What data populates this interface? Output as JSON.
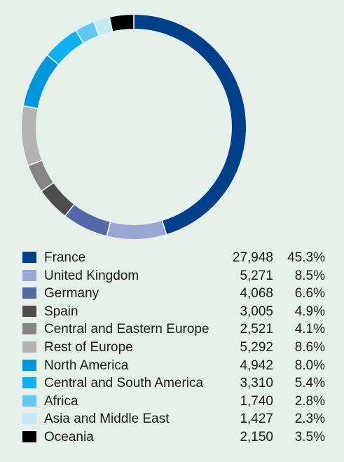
{
  "chart_data": {
    "type": "pie",
    "donut": true,
    "legend_position": "bottom",
    "slices": [
      {
        "label": "France",
        "value": 27948,
        "percent": "45.3%",
        "value_text": "27,948",
        "color": "#003f8a"
      },
      {
        "label": "United Kingdom",
        "value": 5271,
        "percent": "8.5%",
        "value_text": "5,271",
        "color": "#9aa6d4"
      },
      {
        "label": "Germany",
        "value": 4068,
        "percent": "6.6%",
        "value_text": "4,068",
        "color": "#5468a8"
      },
      {
        "label": "Spain",
        "value": 3005,
        "percent": "4.9%",
        "value_text": "3,005",
        "color": "#4d4d4d"
      },
      {
        "label": "Central and Eastern Europe",
        "value": 2521,
        "percent": "4.1%",
        "value_text": "2,521",
        "color": "#858585"
      },
      {
        "label": "Rest of Europe",
        "value": 5292,
        "percent": "8.6%",
        "value_text": "5,292",
        "color": "#b3b3b3"
      },
      {
        "label": "North America",
        "value": 4942,
        "percent": "8.0%",
        "value_text": "4,942",
        "color": "#0096dc"
      },
      {
        "label": "Central and South America",
        "value": 3310,
        "percent": "5.4%",
        "value_text": "3,310",
        "color": "#11aff0"
      },
      {
        "label": "Africa",
        "value": 1740,
        "percent": "2.8%",
        "value_text": "1,740",
        "color": "#5fc9f3"
      },
      {
        "label": "Asia and Middle East",
        "value": 1427,
        "percent": "2.3%",
        "value_text": "1,427",
        "color": "#c4e7f8"
      },
      {
        "label": "Oceania",
        "value": 2150,
        "percent": "3.5%",
        "value_text": "2,150",
        "color": "#000000"
      }
    ]
  }
}
